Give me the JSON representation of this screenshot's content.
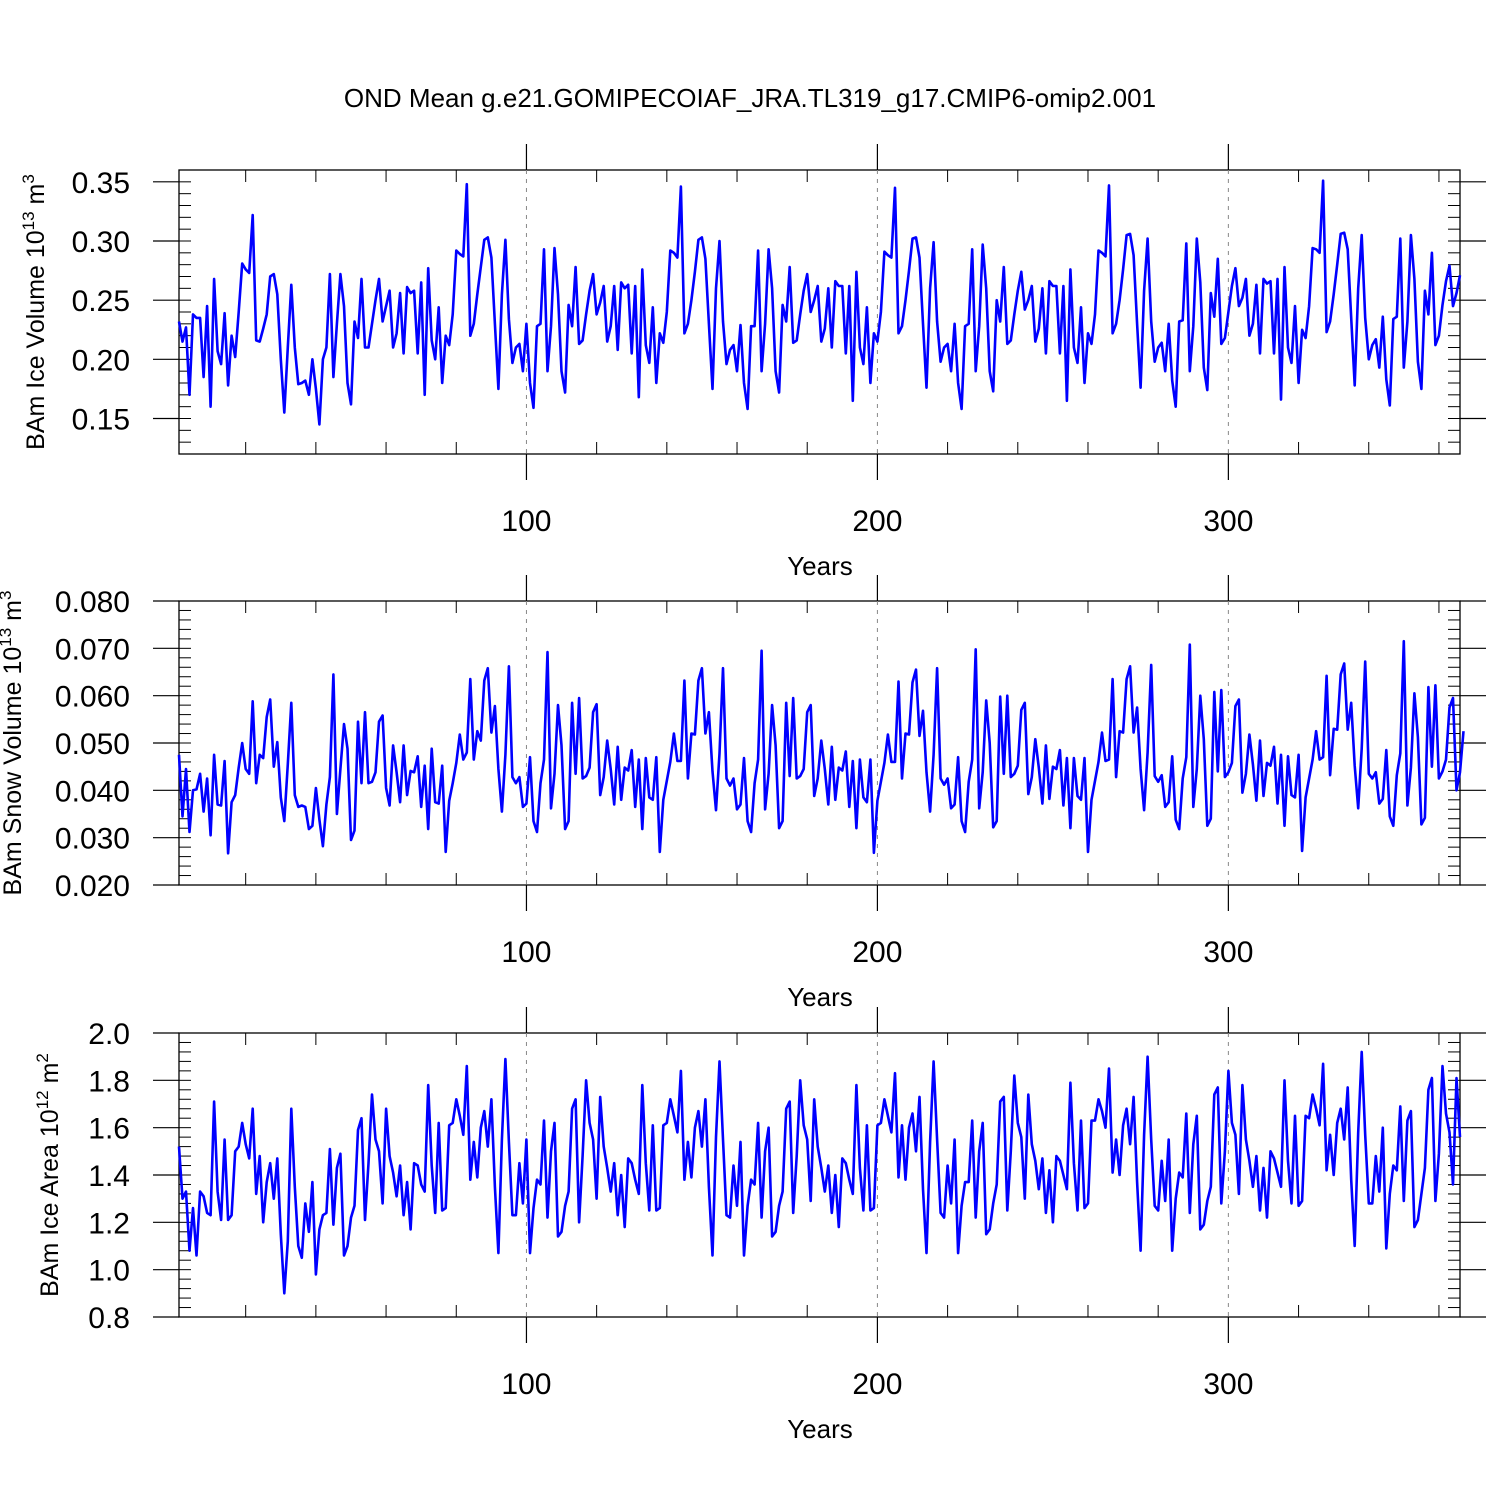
{
  "title": "OND Mean g.e21.GOMIPECOIAF_JRA.TL319_g17.CMIP6-omip2.001",
  "series_color": "#0000ff",
  "chart_data": [
    {
      "type": "line",
      "ylabel": "BAm Ice Volume 10",
      "ylabel_exp": "13",
      "ylabel_unit": " m",
      "ylabel_unit_exp": "3",
      "xlabel": "Years",
      "xlim": [
        1,
        366
      ],
      "ylim": [
        0.12,
        0.36
      ],
      "yticks": [
        0.15,
        0.2,
        0.25,
        0.3,
        0.35
      ],
      "ytick_labels": [
        "0.15",
        "0.20",
        "0.25",
        "0.30",
        "0.35"
      ],
      "xticks": [
        100,
        200,
        300
      ],
      "xtick_labels": [
        "100",
        "200",
        "300"
      ],
      "vlines": [
        100,
        200,
        300
      ],
      "values": [
        0.232,
        0.215,
        0.227,
        0.17,
        0.238,
        0.235,
        0.235,
        0.185,
        0.245,
        0.16,
        0.268,
        0.207,
        0.196,
        0.239,
        0.178,
        0.22,
        0.202,
        0.24,
        0.281,
        0.276,
        0.273,
        0.322,
        0.216,
        0.215,
        0.226,
        0.238,
        0.27,
        0.272,
        0.255,
        0.2,
        0.155,
        0.21,
        0.263,
        0.21,
        0.179,
        0.18,
        0.182,
        0.17,
        0.2,
        0.175,
        0.145,
        0.2,
        0.21,
        0.272,
        0.185,
        0.23,
        0.272,
        0.245,
        0.18,
        0.162,
        0.232,
        0.218,
        0.268,
        0.21,
        0.21,
        0.23,
        0.25,
        0.268,
        0.232,
        0.245,
        0.258,
        0.21,
        0.222,
        0.256,
        0.205,
        0.261,
        0.256,
        0.258,
        0.205,
        0.265,
        0.17,
        0.277,
        0.216,
        0.2,
        0.244,
        0.18,
        0.22,
        0.212,
        0.238,
        0.292,
        0.289,
        0.287,
        0.348,
        0.22,
        0.23,
        0.255,
        0.278,
        0.301,
        0.303,
        0.286,
        0.23,
        0.175,
        0.255,
        0.301,
        0.234,
        0.197,
        0.21,
        0.213,
        0.19,
        0.23,
        0.18,
        0.159,
        0.228,
        0.23,
        0.293,
        0.19,
        0.228,
        0.294,
        0.255,
        0.19,
        0.172,
        0.246,
        0.228,
        0.278,
        0.213,
        0.216,
        0.238,
        0.258,
        0.272,
        0.238,
        0.248,
        0.262,
        0.215,
        0.228,
        0.262,
        0.208,
        0.265,
        0.26,
        0.263,
        0.205,
        0.262,
        0.168,
        0.276,
        0.212,
        0.197,
        0.244,
        0.18,
        0.222,
        0.214,
        0.24,
        0.292,
        0.29,
        0.286,
        0.346,
        0.222,
        0.23,
        0.25,
        0.274,
        0.301,
        0.303,
        0.285,
        0.23,
        0.175,
        0.26,
        0.3,
        0.232,
        0.196,
        0.208,
        0.212,
        0.19,
        0.229,
        0.18,
        0.158,
        0.228,
        0.228,
        0.292,
        0.19,
        0.23,
        0.293,
        0.26,
        0.19,
        0.172,
        0.246,
        0.232,
        0.278,
        0.214,
        0.216,
        0.238,
        0.258,
        0.272,
        0.24,
        0.25,
        0.262,
        0.215,
        0.226,
        0.26,
        0.21,
        0.266,
        0.262,
        0.262,
        0.205,
        0.262,
        0.165,
        0.274,
        0.21,
        0.196,
        0.244,
        0.18,
        0.222,
        0.215,
        0.24,
        0.291,
        0.288,
        0.286,
        0.345,
        0.222,
        0.228,
        0.25,
        0.275,
        0.302,
        0.303,
        0.286,
        0.23,
        0.176,
        0.26,
        0.299,
        0.232,
        0.198,
        0.21,
        0.213,
        0.19,
        0.23,
        0.18,
        0.158,
        0.228,
        0.23,
        0.293,
        0.19,
        0.228,
        0.297,
        0.26,
        0.19,
        0.173,
        0.25,
        0.232,
        0.278,
        0.213,
        0.216,
        0.238,
        0.258,
        0.274,
        0.242,
        0.25,
        0.262,
        0.215,
        0.226,
        0.26,
        0.205,
        0.266,
        0.262,
        0.262,
        0.205,
        0.262,
        0.165,
        0.276,
        0.21,
        0.197,
        0.244,
        0.18,
        0.222,
        0.213,
        0.238,
        0.292,
        0.29,
        0.287,
        0.347,
        0.222,
        0.23,
        0.25,
        0.276,
        0.305,
        0.306,
        0.288,
        0.23,
        0.176,
        0.258,
        0.302,
        0.232,
        0.198,
        0.21,
        0.214,
        0.19,
        0.23,
        0.182,
        0.16,
        0.232,
        0.233,
        0.298,
        0.19,
        0.228,
        0.302,
        0.265,
        0.193,
        0.174,
        0.256,
        0.236,
        0.285,
        0.213,
        0.218,
        0.24,
        0.262,
        0.277,
        0.245,
        0.252,
        0.268,
        0.22,
        0.23,
        0.263,
        0.205,
        0.268,
        0.264,
        0.266,
        0.205,
        0.268,
        0.166,
        0.278,
        0.21,
        0.197,
        0.245,
        0.18,
        0.225,
        0.218,
        0.245,
        0.294,
        0.293,
        0.29,
        0.351,
        0.223,
        0.232,
        0.255,
        0.28,
        0.306,
        0.307,
        0.293,
        0.235,
        0.178,
        0.26,
        0.305,
        0.235,
        0.2,
        0.212,
        0.217,
        0.193,
        0.236,
        0.183,
        0.161,
        0.234,
        0.236,
        0.302,
        0.193,
        0.232,
        0.305,
        0.268,
        0.198,
        0.175,
        0.258,
        0.238,
        0.29,
        0.212,
        0.22,
        0.246,
        0.266,
        0.279,
        0.245,
        0.256,
        0.271
      ]
    },
    {
      "type": "line",
      "ylabel": "BAm Snow Volume 10",
      "ylabel_exp": "13",
      "ylabel_unit": " m",
      "ylabel_unit_exp": "3",
      "xlabel": "Years",
      "xlim": [
        1,
        366
      ],
      "ylim": [
        0.02,
        0.08
      ],
      "yticks": [
        0.02,
        0.03,
        0.04,
        0.05,
        0.06,
        0.07,
        0.08
      ],
      "ytick_labels": [
        "0.020",
        "0.030",
        "0.040",
        "0.050",
        "0.060",
        "0.070",
        "0.080"
      ],
      "xticks": [
        100,
        200,
        300
      ],
      "xtick_labels": [
        "100",
        "200",
        "300"
      ],
      "vlines": [
        100,
        200,
        300
      ],
      "values": [
        0.0475,
        0.0345,
        0.0445,
        0.0312,
        0.04,
        0.0402,
        0.0435,
        0.0355,
        0.0425,
        0.0305,
        0.0475,
        0.037,
        0.0368,
        0.0462,
        0.0267,
        0.0375,
        0.039,
        0.0448,
        0.05,
        0.0445,
        0.0435,
        0.0588,
        0.0415,
        0.0475,
        0.0468,
        0.0555,
        0.0592,
        0.045,
        0.0502,
        0.0385,
        0.0335,
        0.0455,
        0.0585,
        0.039,
        0.0365,
        0.0368,
        0.0365,
        0.0318,
        0.0325,
        0.0405,
        0.0338,
        0.0282,
        0.037,
        0.0428,
        0.0645,
        0.035,
        0.0445,
        0.054,
        0.0488,
        0.0295,
        0.0315,
        0.0545,
        0.0415,
        0.0565,
        0.0415,
        0.0418,
        0.0438,
        0.0545,
        0.0558,
        0.0405,
        0.0368,
        0.0495,
        0.0438,
        0.0375,
        0.0495,
        0.039,
        0.0441,
        0.0438,
        0.0472,
        0.0365,
        0.0452,
        0.0318,
        0.0488,
        0.0375,
        0.0372,
        0.0452,
        0.027,
        0.0378,
        0.0415,
        0.0458,
        0.0518,
        0.0465,
        0.048,
        0.0635,
        0.0465,
        0.0525,
        0.0505,
        0.0632,
        0.0658,
        0.0522,
        0.0578,
        0.0445,
        0.0355,
        0.0475,
        0.0662,
        0.0428,
        0.0415,
        0.0428,
        0.0365,
        0.0372,
        0.047,
        0.0335,
        0.0312,
        0.0415,
        0.0465,
        0.0692,
        0.0362,
        0.0435,
        0.058,
        0.0495,
        0.0318,
        0.0335,
        0.0585,
        0.0435,
        0.0595,
        0.0425,
        0.043,
        0.0448,
        0.0565,
        0.0582,
        0.039,
        0.0428,
        0.0505,
        0.0445,
        0.037,
        0.0492,
        0.038,
        0.0448,
        0.0442,
        0.0485,
        0.0365,
        0.0465,
        0.0318,
        0.0468,
        0.0385,
        0.038,
        0.047,
        0.027,
        0.038,
        0.042,
        0.046,
        0.052,
        0.0462,
        0.0462,
        0.0632,
        0.0425,
        0.052,
        0.0518,
        0.0632,
        0.0658,
        0.052,
        0.0565,
        0.044,
        0.0358,
        0.0478,
        0.0658,
        0.0425,
        0.041,
        0.0425,
        0.036,
        0.037,
        0.0468,
        0.0335,
        0.0312,
        0.0415,
        0.0465,
        0.0695,
        0.036,
        0.0435,
        0.058,
        0.0495,
        0.032,
        0.0335,
        0.0585,
        0.043,
        0.0595,
        0.0425,
        0.043,
        0.0445,
        0.0565,
        0.058,
        0.0388,
        0.0425,
        0.0505,
        0.0445,
        0.037,
        0.0492,
        0.038,
        0.0448,
        0.0442,
        0.0482,
        0.0365,
        0.0462,
        0.032,
        0.0465,
        0.0385,
        0.0375,
        0.0465,
        0.0268,
        0.0378,
        0.0418,
        0.0458,
        0.0518,
        0.046,
        0.046,
        0.063,
        0.0425,
        0.052,
        0.0518,
        0.0628,
        0.0655,
        0.0515,
        0.0568,
        0.0438,
        0.0355,
        0.0475,
        0.0658,
        0.0425,
        0.0412,
        0.0425,
        0.0362,
        0.037,
        0.047,
        0.0335,
        0.0312,
        0.0418,
        0.0465,
        0.0698,
        0.0362,
        0.0438,
        0.059,
        0.05,
        0.0322,
        0.0335,
        0.0598,
        0.0435,
        0.06,
        0.0428,
        0.0435,
        0.0452,
        0.057,
        0.0585,
        0.0392,
        0.0428,
        0.0508,
        0.0448,
        0.0372,
        0.0495,
        0.0382,
        0.045,
        0.0445,
        0.0485,
        0.0368,
        0.0468,
        0.032,
        0.0468,
        0.0388,
        0.038,
        0.0468,
        0.027,
        0.038,
        0.042,
        0.046,
        0.0522,
        0.0462,
        0.0465,
        0.0635,
        0.0428,
        0.0525,
        0.0522,
        0.0635,
        0.0662,
        0.0522,
        0.0575,
        0.0445,
        0.0358,
        0.048,
        0.0665,
        0.043,
        0.0418,
        0.0432,
        0.0365,
        0.0375,
        0.0472,
        0.0338,
        0.0318,
        0.0425,
        0.047,
        0.0708,
        0.0365,
        0.0445,
        0.06,
        0.0508,
        0.0325,
        0.034,
        0.0608,
        0.044,
        0.0612,
        0.0428,
        0.0438,
        0.0458,
        0.0578,
        0.0592,
        0.0395,
        0.0435,
        0.0518,
        0.0455,
        0.0378,
        0.0505,
        0.0388,
        0.0458,
        0.0452,
        0.0492,
        0.0372,
        0.0475,
        0.0325,
        0.0472,
        0.039,
        0.0385,
        0.0475,
        0.0272,
        0.0385,
        0.0425,
        0.0465,
        0.0525,
        0.0465,
        0.047,
        0.0642,
        0.0432,
        0.053,
        0.0528,
        0.0645,
        0.0668,
        0.0528,
        0.0585,
        0.0452,
        0.0362,
        0.0488,
        0.0672,
        0.0435,
        0.0425,
        0.0438,
        0.0372,
        0.0382,
        0.0485,
        0.0345,
        0.0325,
        0.0432,
        0.0478,
        0.0715,
        0.0368,
        0.0448,
        0.0605,
        0.0512,
        0.0328,
        0.0342,
        0.0618,
        0.045,
        0.0622,
        0.0425,
        0.044,
        0.0465,
        0.0575,
        0.0595,
        0.04,
        0.0438,
        0.0525
      ]
    },
    {
      "type": "line",
      "ylabel": "BAm Ice Area 10",
      "ylabel_exp": "12",
      "ylabel_unit": " m",
      "ylabel_unit_exp": "2",
      "xlabel": "Years",
      "xlim": [
        1,
        366
      ],
      "ylim": [
        0.8,
        2.0
      ],
      "yticks": [
        0.8,
        1.0,
        1.2,
        1.4,
        1.6,
        1.8,
        2.0
      ],
      "ytick_labels": [
        "0.8",
        "1.0",
        "1.2",
        "1.4",
        "1.6",
        "1.8",
        "2.0"
      ],
      "xticks": [
        100,
        200,
        300
      ],
      "xtick_labels": [
        "100",
        "200",
        "300"
      ],
      "vlines": [
        100,
        200,
        300
      ],
      "values": [
        1.52,
        1.3,
        1.33,
        1.08,
        1.26,
        1.06,
        1.33,
        1.31,
        1.24,
        1.23,
        1.71,
        1.33,
        1.21,
        1.55,
        1.21,
        1.23,
        1.5,
        1.52,
        1.62,
        1.53,
        1.47,
        1.68,
        1.32,
        1.48,
        1.2,
        1.37,
        1.45,
        1.3,
        1.47,
        1.15,
        0.9,
        1.12,
        1.68,
        1.35,
        1.1,
        1.05,
        1.28,
        1.16,
        1.37,
        0.98,
        1.17,
        1.23,
        1.24,
        1.51,
        1.19,
        1.43,
        1.49,
        1.06,
        1.1,
        1.22,
        1.27,
        1.59,
        1.64,
        1.21,
        1.45,
        1.74,
        1.55,
        1.5,
        1.28,
        1.68,
        1.48,
        1.41,
        1.31,
        1.44,
        1.23,
        1.37,
        1.17,
        1.45,
        1.44,
        1.36,
        1.33,
        1.78,
        1.44,
        1.24,
        1.62,
        1.25,
        1.26,
        1.61,
        1.62,
        1.72,
        1.65,
        1.57,
        1.86,
        1.38,
        1.54,
        1.39,
        1.6,
        1.67,
        1.52,
        1.72,
        1.35,
        1.07,
        1.55,
        1.89,
        1.54,
        1.23,
        1.23,
        1.45,
        1.28,
        1.55,
        1.07,
        1.26,
        1.38,
        1.36,
        1.63,
        1.22,
        1.5,
        1.62,
        1.14,
        1.16,
        1.27,
        1.33,
        1.68,
        1.72,
        1.2,
        1.48,
        1.8,
        1.62,
        1.55,
        1.3,
        1.73,
        1.52,
        1.43,
        1.33,
        1.45,
        1.23,
        1.4,
        1.18,
        1.47,
        1.45,
        1.38,
        1.32,
        1.78,
        1.45,
        1.25,
        1.61,
        1.25,
        1.26,
        1.61,
        1.62,
        1.72,
        1.65,
        1.58,
        1.84,
        1.38,
        1.54,
        1.39,
        1.6,
        1.67,
        1.52,
        1.72,
        1.35,
        1.06,
        1.56,
        1.88,
        1.55,
        1.23,
        1.22,
        1.44,
        1.27,
        1.54,
        1.06,
        1.27,
        1.38,
        1.36,
        1.62,
        1.22,
        1.5,
        1.6,
        1.14,
        1.16,
        1.27,
        1.33,
        1.68,
        1.71,
        1.24,
        1.48,
        1.8,
        1.61,
        1.55,
        1.29,
        1.72,
        1.52,
        1.43,
        1.33,
        1.44,
        1.24,
        1.4,
        1.18,
        1.47,
        1.45,
        1.38,
        1.32,
        1.78,
        1.43,
        1.25,
        1.61,
        1.25,
        1.26,
        1.61,
        1.62,
        1.72,
        1.65,
        1.58,
        1.83,
        1.39,
        1.61,
        1.38,
        1.6,
        1.66,
        1.5,
        1.73,
        1.34,
        1.07,
        1.54,
        1.88,
        1.55,
        1.24,
        1.22,
        1.44,
        1.28,
        1.55,
        1.07,
        1.27,
        1.37,
        1.37,
        1.63,
        1.22,
        1.5,
        1.62,
        1.15,
        1.17,
        1.28,
        1.36,
        1.71,
        1.73,
        1.25,
        1.5,
        1.82,
        1.62,
        1.56,
        1.3,
        1.74,
        1.53,
        1.46,
        1.34,
        1.47,
        1.24,
        1.42,
        1.2,
        1.48,
        1.46,
        1.4,
        1.34,
        1.79,
        1.45,
        1.25,
        1.63,
        1.26,
        1.28,
        1.63,
        1.63,
        1.72,
        1.67,
        1.6,
        1.85,
        1.41,
        1.55,
        1.4,
        1.61,
        1.68,
        1.53,
        1.73,
        1.37,
        1.08,
        1.57,
        1.9,
        1.55,
        1.27,
        1.25,
        1.46,
        1.29,
        1.55,
        1.08,
        1.3,
        1.41,
        1.39,
        1.66,
        1.24,
        1.53,
        1.65,
        1.17,
        1.19,
        1.29,
        1.35,
        1.74,
        1.77,
        1.28,
        1.5,
        1.84,
        1.62,
        1.57,
        1.32,
        1.78,
        1.55,
        1.46,
        1.35,
        1.48,
        1.25,
        1.43,
        1.22,
        1.5,
        1.47,
        1.41,
        1.35,
        1.8,
        1.46,
        1.28,
        1.65,
        1.27,
        1.29,
        1.65,
        1.64,
        1.74,
        1.68,
        1.61,
        1.87,
        1.42,
        1.57,
        1.4,
        1.62,
        1.68,
        1.55,
        1.77,
        1.38,
        1.1,
        1.58,
        1.92,
        1.57,
        1.28,
        1.28,
        1.48,
        1.33,
        1.6,
        1.09,
        1.32,
        1.44,
        1.42,
        1.69,
        1.29,
        1.63,
        1.67,
        1.18,
        1.21,
        1.32,
        1.43,
        1.76,
        1.81,
        1.29,
        1.49,
        1.86,
        1.66,
        1.58,
        1.36,
        1.81,
        1.56
      ]
    }
  ]
}
